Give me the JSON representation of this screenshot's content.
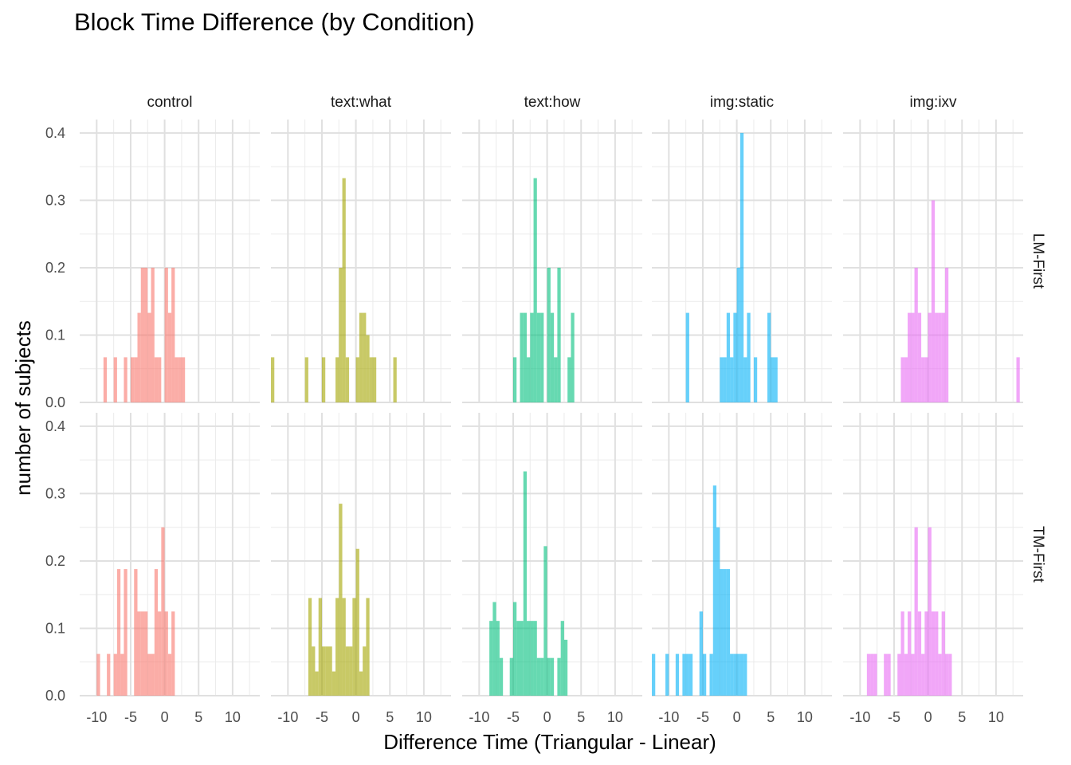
{
  "chart_data": {
    "type": "histogram",
    "title": "Block Time Difference (by Condition)",
    "xlabel": "Difference Time (Triangular - Linear)",
    "ylabel": "number of subjects",
    "xlim": [
      -12.5,
      14
    ],
    "ylim": [
      0,
      0.42
    ],
    "xticks": [
      "-10",
      "-5",
      "0",
      "5",
      "10"
    ],
    "yticks": [
      "0.0",
      "0.1",
      "0.2",
      "0.3",
      "0.4"
    ],
    "grid": true,
    "legend": "none",
    "bin_width": 0.5,
    "colors": {
      "control": "#F8766D",
      "text:what": "#A3A500",
      "text:how": "#00BF7D",
      "img:static": "#00B0F6",
      "img:ixv": "#E76BF3"
    },
    "columns": [
      "control",
      "text:what",
      "text:how",
      "img:static",
      "img:ixv"
    ],
    "rows": [
      "LM-First",
      "TM-First"
    ],
    "panels": [
      {
        "column": "control",
        "row": "LM-First",
        "bins": [
          [
            -8.75,
            0.067
          ],
          [
            -7.25,
            0.067
          ],
          [
            -5.75,
            0.067
          ],
          [
            -4.75,
            0.067
          ],
          [
            -4.25,
            0.067
          ],
          [
            -3.75,
            0.133
          ],
          [
            -3.25,
            0.2
          ],
          [
            -2.75,
            0.2
          ],
          [
            -2.25,
            0.133
          ],
          [
            -1.75,
            0.2
          ],
          [
            -1.25,
            0.067
          ],
          [
            -0.75,
            0.067
          ],
          [
            0.25,
            0.2
          ],
          [
            0.75,
            0.133
          ],
          [
            1.25,
            0.2
          ],
          [
            1.75,
            0.067
          ],
          [
            2.25,
            0.067
          ],
          [
            2.75,
            0.067
          ]
        ]
      },
      {
        "column": "control",
        "row": "TM-First",
        "bins": [
          [
            -9.75,
            0.062
          ],
          [
            -8.25,
            0.062
          ],
          [
            -7.25,
            0.062
          ],
          [
            -6.75,
            0.188
          ],
          [
            -6.25,
            0.062
          ],
          [
            -5.75,
            0.188
          ],
          [
            -4.25,
            0.188
          ],
          [
            -3.75,
            0.125
          ],
          [
            -3.25,
            0.125
          ],
          [
            -2.75,
            0.125
          ],
          [
            -2.25,
            0.062
          ],
          [
            -1.75,
            0.062
          ],
          [
            -1.25,
            0.188
          ],
          [
            -0.75,
            0.125
          ],
          [
            -0.25,
            0.25
          ],
          [
            0.25,
            0.125
          ],
          [
            0.75,
            0.062
          ],
          [
            1.25,
            0.125
          ]
        ]
      },
      {
        "column": "text:what",
        "row": "LM-First",
        "bins": [
          [
            -12.25,
            0.067
          ],
          [
            -7.25,
            0.067
          ],
          [
            -4.75,
            0.067
          ],
          [
            -2.75,
            0.067
          ],
          [
            -2.25,
            0.2
          ],
          [
            -1.75,
            0.333
          ],
          [
            -1.25,
            0.067
          ],
          [
            0.25,
            0.067
          ],
          [
            0.75,
            0.133
          ],
          [
            1.25,
            0.133
          ],
          [
            1.75,
            0.1
          ],
          [
            2.25,
            0.067
          ],
          [
            2.75,
            0.067
          ],
          [
            5.75,
            0.067
          ]
        ]
      },
      {
        "column": "text:what",
        "row": "TM-First",
        "bins": [
          [
            -6.75,
            0.145
          ],
          [
            -6.25,
            0.073
          ],
          [
            -5.75,
            0.036
          ],
          [
            -5.25,
            0.145
          ],
          [
            -4.75,
            0.073
          ],
          [
            -4.25,
            0.073
          ],
          [
            -3.75,
            0.073
          ],
          [
            -3.25,
            0.036
          ],
          [
            -2.75,
            0.145
          ],
          [
            -2.25,
            0.285
          ],
          [
            -1.75,
            0.145
          ],
          [
            -1.25,
            0.073
          ],
          [
            -0.75,
            0.073
          ],
          [
            -0.25,
            0.145
          ],
          [
            0.25,
            0.218
          ],
          [
            0.75,
            0.036
          ],
          [
            1.25,
            0.073
          ],
          [
            1.75,
            0.145
          ]
        ]
      },
      {
        "column": "text:how",
        "row": "LM-First",
        "bins": [
          [
            -4.75,
            0.067
          ],
          [
            -3.75,
            0.133
          ],
          [
            -3.25,
            0.133
          ],
          [
            -2.75,
            0.067
          ],
          [
            -2.25,
            0.133
          ],
          [
            -1.75,
            0.333
          ],
          [
            -1.25,
            0.133
          ],
          [
            -0.75,
            0.133
          ],
          [
            0.25,
            0.2
          ],
          [
            0.75,
            0.133
          ],
          [
            1.25,
            0.067
          ],
          [
            1.75,
            0.2
          ],
          [
            3.25,
            0.067
          ],
          [
            3.75,
            0.133
          ]
        ]
      },
      {
        "column": "text:how",
        "row": "TM-First",
        "bins": [
          [
            -8.25,
            0.111
          ],
          [
            -7.75,
            0.139
          ],
          [
            -7.25,
            0.111
          ],
          [
            -6.75,
            0.056
          ],
          [
            -5.25,
            0.056
          ],
          [
            -4.75,
            0.139
          ],
          [
            -4.25,
            0.111
          ],
          [
            -3.75,
            0.111
          ],
          [
            -3.25,
            0.333
          ],
          [
            -2.75,
            0.111
          ],
          [
            -2.25,
            0.111
          ],
          [
            -1.75,
            0.111
          ],
          [
            -1.25,
            0.056
          ],
          [
            -0.75,
            0.056
          ],
          [
            -0.25,
            0.222
          ],
          [
            0.25,
            0.056
          ],
          [
            0.75,
            0.056
          ],
          [
            1.75,
            0.056
          ],
          [
            2.25,
            0.111
          ],
          [
            2.75,
            0.083
          ],
          [
            3.25,
            0.0
          ]
        ]
      },
      {
        "column": "img:static",
        "row": "LM-First",
        "bins": [
          [
            -7.25,
            0.133
          ],
          [
            -2.25,
            0.067
          ],
          [
            -1.75,
            0.067
          ],
          [
            -1.25,
            0.133
          ],
          [
            -0.75,
            0.067
          ],
          [
            -0.25,
            0.133
          ],
          [
            0.25,
            0.2
          ],
          [
            0.75,
            0.4
          ],
          [
            1.25,
            0.067
          ],
          [
            1.75,
            0.133
          ],
          [
            2.75,
            0.067
          ],
          [
            4.75,
            0.133
          ],
          [
            5.25,
            0.067
          ],
          [
            5.75,
            0.067
          ]
        ]
      },
      {
        "column": "img:static",
        "row": "TM-First",
        "bins": [
          [
            -12.25,
            0.062
          ],
          [
            -10.25,
            0.062
          ],
          [
            -8.75,
            0.062
          ],
          [
            -7.75,
            0.062
          ],
          [
            -7.25,
            0.062
          ],
          [
            -6.75,
            0.062
          ],
          [
            -5.25,
            0.125
          ],
          [
            -4.75,
            0.062
          ],
          [
            -3.75,
            0.062
          ],
          [
            -3.25,
            0.312
          ],
          [
            -2.75,
            0.25
          ],
          [
            -2.25,
            0.188
          ],
          [
            -1.75,
            0.188
          ],
          [
            -1.25,
            0.188
          ],
          [
            -0.75,
            0.062
          ],
          [
            -0.25,
            0.062
          ],
          [
            0.25,
            0.062
          ],
          [
            0.75,
            0.062
          ],
          [
            1.25,
            0.062
          ]
        ]
      },
      {
        "column": "img:ixv",
        "row": "LM-First",
        "bins": [
          [
            -3.75,
            0.067
          ],
          [
            -3.25,
            0.067
          ],
          [
            -2.75,
            0.133
          ],
          [
            -2.25,
            0.133
          ],
          [
            -1.75,
            0.2
          ],
          [
            -1.25,
            0.133
          ],
          [
            -0.75,
            0.067
          ],
          [
            -0.25,
            0.067
          ],
          [
            0.25,
            0.133
          ],
          [
            0.75,
            0.3
          ],
          [
            1.25,
            0.133
          ],
          [
            1.75,
            0.133
          ],
          [
            2.25,
            0.133
          ],
          [
            2.75,
            0.2
          ],
          [
            13.25,
            0.067
          ]
        ]
      },
      {
        "column": "img:ixv",
        "row": "TM-First",
        "bins": [
          [
            -8.75,
            0.062
          ],
          [
            -8.25,
            0.062
          ],
          [
            -7.75,
            0.062
          ],
          [
            -6.25,
            0.062
          ],
          [
            -5.75,
            0.062
          ],
          [
            -4.25,
            0.062
          ],
          [
            -3.75,
            0.125
          ],
          [
            -3.25,
            0.062
          ],
          [
            -2.75,
            0.125
          ],
          [
            -2.25,
            0.062
          ],
          [
            -1.75,
            0.25
          ],
          [
            -1.25,
            0.125
          ],
          [
            -0.75,
            0.062
          ],
          [
            -0.25,
            0.125
          ],
          [
            0.25,
            0.25
          ],
          [
            0.75,
            0.125
          ],
          [
            1.25,
            0.125
          ],
          [
            1.75,
            0.062
          ],
          [
            2.25,
            0.125
          ],
          [
            2.75,
            0.062
          ],
          [
            3.25,
            0.062
          ]
        ]
      }
    ]
  }
}
